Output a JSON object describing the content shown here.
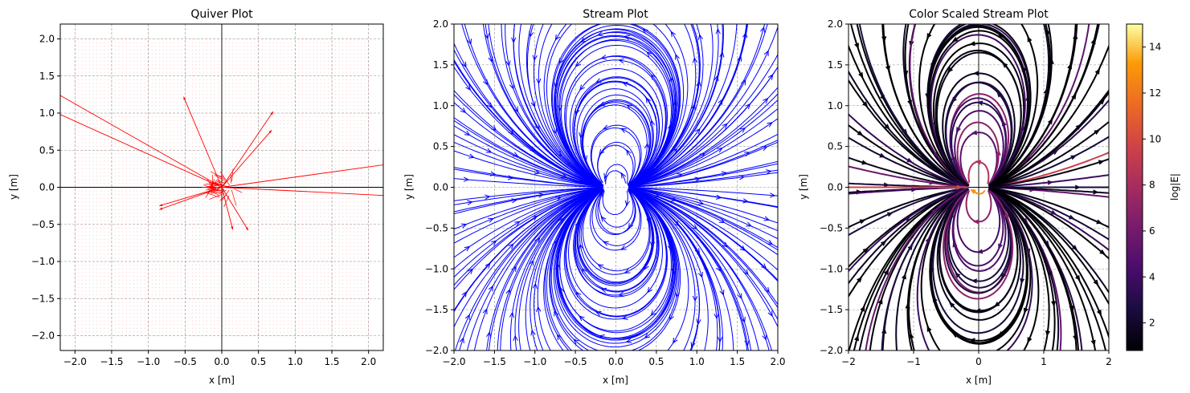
{
  "chart_data": [
    {
      "type": "quiver",
      "title": "Quiver Plot",
      "xlabel": "x [m]",
      "ylabel": "y [m]",
      "xlim": [
        -2.2,
        2.2
      ],
      "ylim": [
        -2.2,
        2.2
      ],
      "xticks": [
        "−2.0",
        "−1.5",
        "−1.0",
        "−0.5",
        "0.0",
        "0.5",
        "1.0",
        "1.5",
        "2.0"
      ],
      "yticks": [
        "−2.0",
        "−1.5",
        "−1.0",
        "−0.5",
        "0.0",
        "0.5",
        "1.0",
        "1.5",
        "2.0"
      ],
      "grid": true,
      "axes_lines": true,
      "color": "#ff0000",
      "field_grid": {
        "xmin": -2,
        "xmax": 2,
        "ymin": -2,
        "ymax": 2
      },
      "arrows": [
        {
          "x": 0,
          "y": 0,
          "u": -2.4,
          "v": 1.35
        },
        {
          "x": 0,
          "y": 0,
          "u": -2.4,
          "v": 1.07
        },
        {
          "x": 0,
          "y": 0,
          "u": 2.4,
          "v": 0.33
        },
        {
          "x": 0,
          "y": 0,
          "u": 2.4,
          "v": -0.12
        },
        {
          "x": 0,
          "y": 0,
          "u": -0.52,
          "v": 1.22
        },
        {
          "x": 0,
          "y": 0,
          "u": 0.7,
          "v": 1.02
        },
        {
          "x": 0,
          "y": 0,
          "u": 0.68,
          "v": 0.77
        },
        {
          "x": 0,
          "y": 0,
          "u": -0.85,
          "v": -0.3
        },
        {
          "x": 0,
          "y": 0,
          "u": -0.85,
          "v": -0.25
        },
        {
          "x": 0,
          "y": 0,
          "u": 0.15,
          "v": -0.57
        },
        {
          "x": 0,
          "y": 0,
          "u": 0.36,
          "v": -0.58
        }
      ]
    },
    {
      "type": "streamplot",
      "title": "Stream Plot",
      "xlabel": "x [m]",
      "ylabel": "y [m]",
      "xlim": [
        -2.0,
        2.0
      ],
      "ylim": [
        -2.0,
        2.0
      ],
      "xticks": [
        "−2.0",
        "−1.5",
        "−1.0",
        "−0.5",
        "0.0",
        "0.5",
        "1.0",
        "1.5",
        "2.0"
      ],
      "yticks": [
        "−2.0",
        "−1.5",
        "−1.0",
        "−0.5",
        "0.0",
        "0.5",
        "1.0",
        "1.5",
        "2.0"
      ],
      "grid": true,
      "color": "#0000ff",
      "field": "dipole"
    },
    {
      "type": "streamplot",
      "title": "Color Scaled Stream Plot",
      "xlabel": "x [m]",
      "ylabel": "y [m]",
      "xlim": [
        -2,
        2
      ],
      "ylim": [
        -2,
        2
      ],
      "xticks": [
        "−2",
        "−1",
        "0",
        "1",
        "2"
      ],
      "yticks": [
        "−2.0",
        "−1.5",
        "−1.0",
        "−0.5",
        "0.0",
        "0.5",
        "1.0",
        "1.5",
        "2.0"
      ],
      "grid": true,
      "axes_lines": true,
      "field": "dipole",
      "colormap": "inferno",
      "colorbar": {
        "label": "log|E|",
        "range": [
          0.8,
          15
        ],
        "ticks": [
          "2",
          "4",
          "6",
          "8",
          "10",
          "12",
          "14"
        ]
      }
    }
  ]
}
